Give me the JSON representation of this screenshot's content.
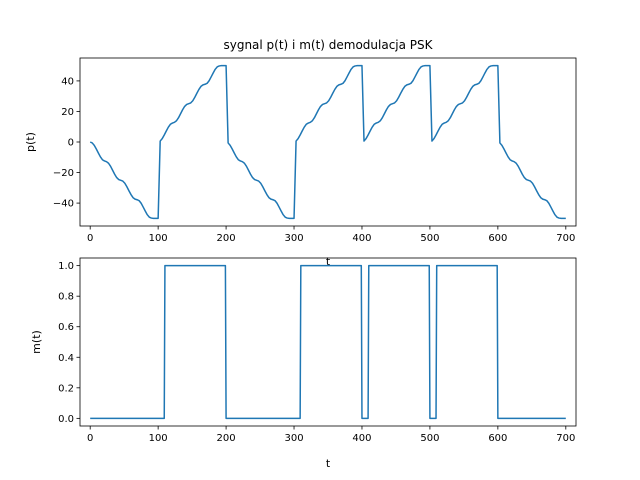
{
  "chart_data": [
    {
      "type": "line",
      "title": "sygnal p(t) i m(t) demodulacja PSK",
      "xlabel": "t",
      "ylabel": "p(t)",
      "xlim": [
        -15,
        715
      ],
      "ylim": [
        -55,
        55
      ],
      "xticks": [
        0,
        100,
        200,
        300,
        400,
        500,
        600,
        700
      ],
      "yticks": [
        -40,
        -20,
        0,
        20,
        40
      ],
      "grid": false,
      "series": [
        {
          "name": "",
          "description_points": "integrated PSK product, staircase ramps between bit boundaries",
          "x": [
            0,
            3,
            6,
            9,
            12,
            15,
            18,
            21,
            24,
            27,
            30,
            33,
            36,
            39,
            42,
            45,
            48,
            51,
            54,
            57,
            60,
            63,
            66,
            69,
            72,
            75,
            78,
            81,
            84,
            87,
            90,
            93,
            96,
            99,
            100,
            103,
            106,
            109,
            112,
            115,
            118,
            121,
            124,
            127,
            130,
            133,
            136,
            139,
            142,
            145,
            148,
            151,
            154,
            157,
            160,
            163,
            166,
            169,
            172,
            175,
            178,
            181,
            184,
            187,
            190,
            193,
            196,
            199,
            200,
            203,
            206,
            209,
            212,
            215,
            218,
            221,
            224,
            227,
            230,
            233,
            236,
            239,
            242,
            245,
            248,
            251,
            254,
            257,
            260,
            263,
            266,
            269,
            272,
            275,
            278,
            281,
            284,
            287,
            290,
            293,
            296,
            299,
            300,
            303,
            306,
            309,
            312,
            315,
            318,
            321,
            324,
            327,
            330,
            333,
            336,
            339,
            342,
            345,
            348,
            351,
            354,
            357,
            360,
            363,
            366,
            369,
            372,
            375,
            378,
            381,
            384,
            387,
            390,
            393,
            396,
            399,
            400,
            403,
            406,
            409,
            412,
            415,
            418,
            421,
            424,
            427,
            430,
            433,
            436,
            439,
            442,
            445,
            448,
            451,
            454,
            457,
            460,
            463,
            466,
            469,
            472,
            475,
            478,
            481,
            484,
            487,
            490,
            493,
            496,
            499,
            500,
            503,
            506,
            509,
            512,
            515,
            518,
            521,
            524,
            527,
            530,
            533,
            536,
            539,
            542,
            545,
            548,
            551,
            554,
            557,
            560,
            563,
            566,
            569,
            572,
            575,
            578,
            581,
            584,
            587,
            590,
            593,
            596,
            599,
            600,
            603,
            606,
            609,
            612,
            615,
            618,
            621,
            624,
            627,
            630,
            633,
            636,
            639,
            642,
            645,
            648,
            651,
            654,
            657,
            660,
            663,
            666,
            669,
            672,
            675,
            678,
            681,
            684,
            687,
            690,
            693,
            696,
            699,
            700
          ],
          "y": [
            0,
            -0.6,
            -2.2,
            -4.6,
            -7.2,
            -9.7,
            -11.6,
            -12.4,
            -12.9,
            -13.9,
            -15.9,
            -18.5,
            -21.1,
            -23.3,
            -24.6,
            -25.1,
            -25.6,
            -27.0,
            -29.3,
            -31.9,
            -34.4,
            -36.4,
            -37.4,
            -37.8,
            -38.4,
            -40.1,
            -42.6,
            -45.2,
            -47.6,
            -49.2,
            -49.8,
            -50.0,
            -50.0,
            -50.0,
            -50.0,
            0.6,
            2.2,
            4.6,
            7.2,
            9.7,
            11.6,
            12.4,
            12.9,
            13.9,
            15.9,
            18.5,
            21.1,
            23.3,
            24.6,
            25.1,
            25.6,
            27.0,
            29.3,
            31.9,
            34.4,
            36.4,
            37.4,
            37.8,
            38.4,
            40.1,
            42.6,
            45.2,
            47.6,
            49.2,
            49.8,
            50.0,
            50.0,
            50.0,
            50.0,
            -0.6,
            -2.2,
            -4.6,
            -7.2,
            -9.7,
            -11.6,
            -12.4,
            -12.9,
            -13.9,
            -15.9,
            -18.5,
            -21.1,
            -23.3,
            -24.6,
            -25.1,
            -25.6,
            -27.0,
            -29.3,
            -31.9,
            -34.4,
            -36.4,
            -37.4,
            -37.8,
            -38.4,
            -40.1,
            -42.6,
            -45.2,
            -47.6,
            -49.2,
            -49.8,
            -50.0,
            -50.0,
            -50.0,
            -50.0,
            0.6,
            2.2,
            4.6,
            7.2,
            9.7,
            11.6,
            12.4,
            12.9,
            13.9,
            15.9,
            18.5,
            21.1,
            23.3,
            24.6,
            25.1,
            25.6,
            27.0,
            29.3,
            31.9,
            34.4,
            36.4,
            37.4,
            37.8,
            38.4,
            40.1,
            42.6,
            45.2,
            47.6,
            49.2,
            49.8,
            50.0,
            50.0,
            50.0,
            50.0,
            0.6,
            2.2,
            4.6,
            7.2,
            9.7,
            11.6,
            12.4,
            12.9,
            13.9,
            15.9,
            18.5,
            21.1,
            23.3,
            24.6,
            25.1,
            25.6,
            27.0,
            29.3,
            31.9,
            34.4,
            36.4,
            37.4,
            37.8,
            38.4,
            40.1,
            42.6,
            45.2,
            47.6,
            49.2,
            49.8,
            50.0,
            50.0,
            50.0,
            50.0,
            0.6,
            2.2,
            4.6,
            7.2,
            9.7,
            11.6,
            12.4,
            12.9,
            13.9,
            15.9,
            18.5,
            21.1,
            23.3,
            24.6,
            25.1,
            25.6,
            27.0,
            29.3,
            31.9,
            34.4,
            36.4,
            37.4,
            37.8,
            38.4,
            40.1,
            42.6,
            45.2,
            47.6,
            49.2,
            49.8,
            50.0,
            50.0,
            50.0,
            50.0,
            -0.6,
            -2.2,
            -4.6,
            -7.2,
            -9.7,
            -11.6,
            -12.4,
            -12.9,
            -13.9,
            -15.9,
            -18.5,
            -21.1,
            -23.3,
            -24.6,
            -25.1,
            -25.6,
            -27.0,
            -29.3,
            -31.9,
            -34.4,
            -36.4,
            -37.4,
            -37.8,
            -38.4,
            -40.1,
            -42.6,
            -45.2,
            -47.6,
            -49.2,
            -49.8,
            -50.0,
            -50.0,
            -50.0,
            -50.0
          ]
        }
      ]
    },
    {
      "type": "line",
      "title": "",
      "xlabel": "t",
      "ylabel": "m(t)",
      "xlim": [
        -15,
        715
      ],
      "ylim": [
        -0.05,
        1.05
      ],
      "xticks": [
        0,
        100,
        200,
        300,
        400,
        500,
        600,
        700
      ],
      "yticks": [
        0.0,
        0.2,
        0.4,
        0.6,
        0.8,
        1.0
      ],
      "ytick_labels": [
        "0.0",
        "0.2",
        "0.4",
        "0.6",
        "0.8",
        "1.0"
      ],
      "grid": false,
      "series": [
        {
          "name": "",
          "x": [
            0,
            109,
            110,
            199,
            200,
            309,
            310,
            399,
            400,
            409,
            410,
            499,
            500,
            509,
            510,
            599,
            600,
            700
          ],
          "y": [
            0,
            0,
            1,
            1,
            0,
            0,
            1,
            1,
            0,
            0,
            1,
            1,
            0,
            0,
            1,
            1,
            0,
            0
          ]
        }
      ]
    }
  ]
}
